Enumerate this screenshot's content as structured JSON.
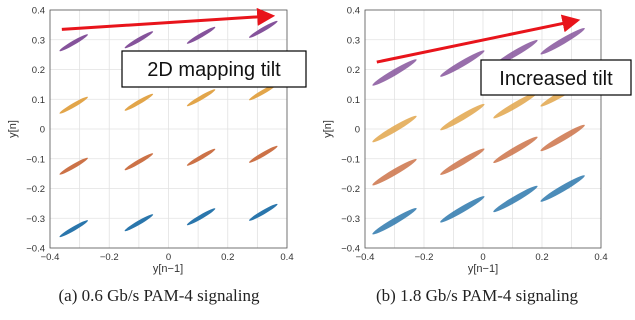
{
  "chart_data": [
    {
      "type": "scatter",
      "xlabel": "y[n−1]",
      "ylabel": "y[n]",
      "xlim": [
        -0.4,
        0.4
      ],
      "ylim": [
        -0.4,
        0.4
      ],
      "xticks": [
        "−0.4",
        "−0.2",
        "0",
        "0.2",
        "0.4"
      ],
      "yticks": [
        "0.4",
        "0.3",
        "0.2",
        "0.1",
        "0",
        "−0.1",
        "−0.2",
        "−0.3",
        "−0.4"
      ],
      "grid": true,
      "caption": "(a) 0.6 Gb/s PAM-4 signaling",
      "annotation": {
        "text": "2D mapping tilt",
        "arrow_from": [
          -0.36,
          0.335
        ],
        "arrow_to": [
          0.35,
          0.38
        ],
        "arrow_color": "#e8141b"
      },
      "series": [
        {
          "color": "#1f6fa8",
          "clusters": [
            {
              "x": -0.32,
              "y": -0.335
            },
            {
              "x": -0.1,
              "y": -0.315
            },
            {
              "x": 0.11,
              "y": -0.295
            },
            {
              "x": 0.32,
              "y": -0.28
            }
          ]
        },
        {
          "color": "#c96a3d",
          "clusters": [
            {
              "x": -0.32,
              "y": -0.125
            },
            {
              "x": -0.1,
              "y": -0.11
            },
            {
              "x": 0.11,
              "y": -0.095
            },
            {
              "x": 0.32,
              "y": -0.085
            }
          ]
        },
        {
          "color": "#e0a040",
          "clusters": [
            {
              "x": -0.32,
              "y": 0.08
            },
            {
              "x": -0.1,
              "y": 0.09
            },
            {
              "x": 0.11,
              "y": 0.105
            },
            {
              "x": 0.32,
              "y": 0.125
            }
          ]
        },
        {
          "color": "#7e4a96",
          "clusters": [
            {
              "x": -0.32,
              "y": 0.29
            },
            {
              "x": -0.1,
              "y": 0.3
            },
            {
              "x": 0.11,
              "y": 0.315
            },
            {
              "x": 0.32,
              "y": 0.335
            }
          ]
        }
      ]
    },
    {
      "type": "scatter",
      "xlabel": "y[n−1]",
      "ylabel": "y[n]",
      "xlim": [
        -0.4,
        0.4
      ],
      "ylim": [
        -0.4,
        0.4
      ],
      "xticks": [
        "−0.4",
        "−0.2",
        "0",
        "0.2",
        "0.4"
      ],
      "yticks": [
        "0.4",
        "0.3",
        "0.2",
        "0.1",
        "0",
        "−0.1",
        "−0.2",
        "−0.3",
        "−0.4"
      ],
      "grid": true,
      "caption": "(b) 1.8 Gb/s PAM-4 signaling",
      "annotation": {
        "text": "Increased tilt",
        "arrow_from": [
          -0.36,
          0.225
        ],
        "arrow_to": [
          0.32,
          0.365
        ],
        "arrow_color": "#e8141b"
      },
      "series": [
        {
          "color": "#1f6fa8",
          "clusters": [
            {
              "x": -0.3,
              "y": -0.31
            },
            {
              "x": -0.07,
              "y": -0.27
            },
            {
              "x": 0.11,
              "y": -0.235
            },
            {
              "x": 0.27,
              "y": -0.2
            }
          ]
        },
        {
          "color": "#c96a3d",
          "clusters": [
            {
              "x": -0.3,
              "y": -0.145
            },
            {
              "x": -0.07,
              "y": -0.11
            },
            {
              "x": 0.11,
              "y": -0.07
            },
            {
              "x": 0.27,
              "y": -0.03
            }
          ]
        },
        {
          "color": "#e0a040",
          "clusters": [
            {
              "x": -0.3,
              "y": 0.0
            },
            {
              "x": -0.07,
              "y": 0.04
            },
            {
              "x": 0.11,
              "y": 0.08
            },
            {
              "x": 0.27,
              "y": 0.12
            }
          ]
        },
        {
          "color": "#7e4a96",
          "clusters": [
            {
              "x": -0.3,
              "y": 0.19
            },
            {
              "x": -0.07,
              "y": 0.22
            },
            {
              "x": 0.11,
              "y": 0.255
            },
            {
              "x": 0.27,
              "y": 0.295
            }
          ]
        }
      ]
    }
  ]
}
